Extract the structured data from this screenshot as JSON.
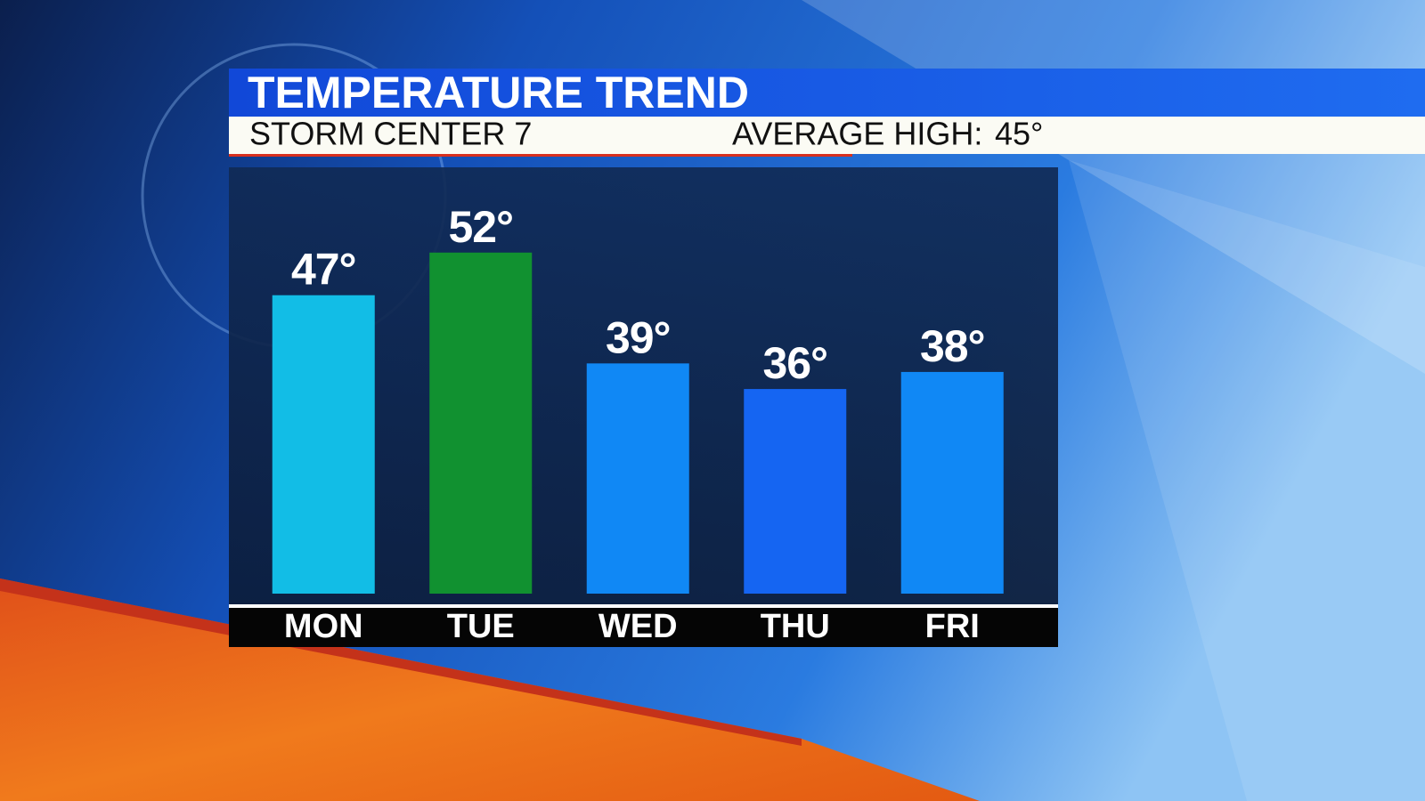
{
  "chart_data": {
    "type": "bar",
    "title": "TEMPERATURE TREND",
    "subtitle": "STORM CENTER 7",
    "average_high_label": "AVERAGE HIGH:",
    "average_high": "45°",
    "categories": [
      "MON",
      "TUE",
      "WED",
      "THU",
      "FRI"
    ],
    "values": [
      47,
      52,
      39,
      36,
      38
    ],
    "value_labels": [
      "47°",
      "52°",
      "39°",
      "36°",
      "38°"
    ],
    "colors": [
      "#12bde6",
      "#119130",
      "#1088f5",
      "#1565f2",
      "#1088f5"
    ],
    "ylim": [
      12,
      62
    ],
    "grid": false
  }
}
